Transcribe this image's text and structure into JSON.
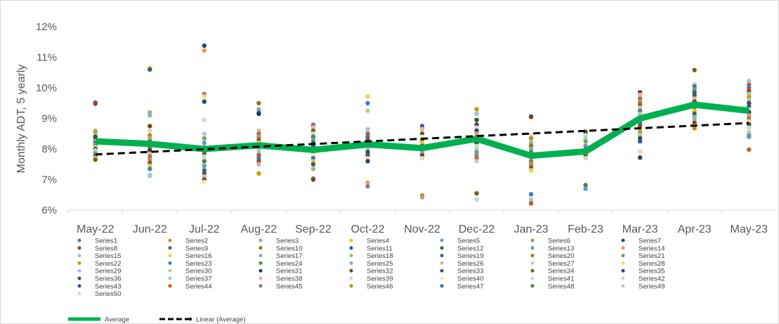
{
  "chart_data": {
    "type": "scatter",
    "title": "",
    "xlabel": "",
    "ylabel": "Monthly ADT, 5 yearly",
    "ylim": [
      6,
      12
    ],
    "y_ticks": [
      "6%",
      "7%",
      "8%",
      "9%",
      "10%",
      "11%",
      "12%"
    ],
    "grid": false,
    "legend_position": "bottom",
    "categories": [
      "May-22",
      "Jun-22",
      "Jul-22",
      "Aug-22",
      "Sep-22",
      "Oct-22",
      "Nov-22",
      "Dec-22",
      "Jan-23",
      "Feb-23",
      "Mar-23",
      "Apr-23",
      "May-23"
    ],
    "series_names": [
      "Series1",
      "Series2",
      "Series3",
      "Series4",
      "Series5",
      "Series6",
      "Series7",
      "Series8",
      "Series9",
      "Series10",
      "Series11",
      "Series12",
      "Series13",
      "Series14",
      "Series15",
      "Series16",
      "Series17",
      "Series18",
      "Series19",
      "Series20",
      "Series21",
      "Series22",
      "Series23",
      "Series24",
      "Series25",
      "Series26",
      "Series27",
      "Series28",
      "Series29",
      "Series30",
      "Series31",
      "Series32",
      "Series33",
      "Series34",
      "Series35",
      "Series36",
      "Series37",
      "Series38",
      "Series39",
      "Series40",
      "Series41",
      "Series42",
      "Series43",
      "Series44",
      "Series45",
      "Series46",
      "Series47",
      "Series48",
      "Series49",
      "Series50"
    ],
    "series_colors": [
      "#4472C4",
      "#ED7D31",
      "#A5A5A5",
      "#FFC000",
      "#5B9BD5",
      "#70AD47",
      "#264478",
      "#9E480E",
      "#636363",
      "#997300",
      "#255E91",
      "#43682B",
      "#698ED0",
      "#F1975A",
      "#B7B7B7",
      "#FFCD33",
      "#7CAFDD",
      "#8CC168",
      "#335AA1",
      "#D26012",
      "#848484",
      "#CC9A00",
      "#3C7DC4",
      "#5A8A39",
      "#8FAADC",
      "#F4B183",
      "#C9C9C9",
      "#FFD966",
      "#9DC3E6",
      "#A9D18E",
      "#203864",
      "#843C0C",
      "#525252",
      "#7F6000",
      "#1F4E79",
      "#385723",
      "#9DC3E6",
      "#F4B183",
      "#D6D6D6",
      "#FFE699",
      "#BDD7EE",
      "#C5E0B4",
      "#2E5597",
      "#C55A11",
      "#7B7B7B",
      "#BF8F00",
      "#2E75B6",
      "#548235",
      "#B4C7E7",
      "#F8CBAD"
    ],
    "average": {
      "name": "Average",
      "color": "#00B050",
      "values": [
        8.25,
        8.17,
        8.0,
        8.12,
        7.97,
        8.15,
        8.03,
        8.33,
        7.78,
        7.92,
        9.0,
        9.45,
        9.25
      ]
    },
    "trendline": {
      "name": "Linear (Average)",
      "color": "#000000",
      "start": 7.82,
      "end": 8.85
    },
    "scatter_points": [
      [
        9.52,
        9.48,
        8.6,
        8.55,
        8.45,
        8.4,
        8.3,
        8.25,
        8.2,
        8.15,
        8.1,
        8.05,
        8.0,
        7.95,
        7.9,
        7.85,
        7.8,
        7.75,
        7.7,
        7.65
      ],
      [
        10.65,
        10.6,
        9.2,
        9.1,
        8.75,
        8.6,
        8.45,
        8.35,
        8.25,
        8.15,
        8.05,
        7.95,
        7.85,
        7.75,
        7.65,
        7.55,
        7.45,
        7.35,
        7.15,
        7.12
      ],
      [
        11.38,
        11.22,
        9.8,
        9.72,
        9.55,
        8.95,
        8.5,
        8.35,
        8.2,
        8.05,
        7.95,
        7.85,
        7.75,
        7.6,
        7.45,
        7.3,
        7.2,
        7.1,
        7.0,
        6.92
      ],
      [
        9.5,
        9.3,
        9.2,
        9.15,
        8.6,
        8.5,
        8.4,
        8.3,
        8.2,
        8.1,
        8.0,
        7.9,
        7.8,
        7.7,
        7.6,
        7.5,
        7.2
      ],
      [
        8.8,
        8.75,
        8.7,
        8.6,
        8.5,
        8.4,
        8.3,
        8.2,
        8.1,
        8.0,
        7.9,
        7.8,
        7.7,
        7.6,
        7.5,
        7.35,
        7.05,
        7.0
      ],
      [
        9.72,
        9.5,
        9.25,
        8.65,
        8.5,
        8.4,
        8.3,
        8.2,
        8.1,
        8.0,
        7.9,
        7.8,
        7.7,
        7.6,
        6.9,
        6.78
      ],
      [
        8.75,
        8.65,
        8.5,
        8.4,
        8.3,
        8.2,
        8.1,
        8.0,
        7.9,
        7.8,
        7.7,
        6.48,
        6.42
      ],
      [
        9.3,
        9.15,
        8.95,
        8.8,
        8.7,
        8.6,
        8.5,
        8.4,
        8.3,
        8.2,
        8.1,
        8.0,
        7.9,
        7.8,
        7.7,
        7.6,
        6.55,
        6.35
      ],
      [
        9.08,
        9.05,
        8.45,
        8.35,
        8.2,
        8.1,
        8.0,
        7.9,
        7.8,
        7.7,
        7.6,
        7.5,
        7.4,
        7.3,
        6.52,
        6.35,
        6.3,
        6.22
      ],
      [
        8.6,
        8.55,
        8.45,
        8.35,
        8.25,
        8.1,
        8.0,
        7.9,
        7.8,
        7.7,
        6.82,
        6.7
      ],
      [
        9.85,
        9.78,
        9.65,
        9.55,
        9.45,
        9.35,
        9.25,
        9.15,
        9.05,
        8.95,
        8.85,
        8.75,
        8.65,
        8.55,
        8.45,
        8.35,
        8.25,
        7.92,
        7.72
      ],
      [
        10.58,
        10.12,
        10.05,
        9.95,
        9.85,
        9.75,
        9.65,
        9.55,
        9.45,
        9.35,
        9.25,
        9.15,
        9.05,
        8.95,
        8.85,
        8.75,
        8.68
      ],
      [
        10.22,
        10.1,
        10.0,
        9.9,
        9.8,
        9.7,
        9.6,
        9.5,
        9.4,
        9.3,
        9.2,
        9.1,
        9.0,
        8.9,
        8.8,
        8.7,
        8.55,
        8.45,
        8.4,
        7.98
      ]
    ]
  }
}
